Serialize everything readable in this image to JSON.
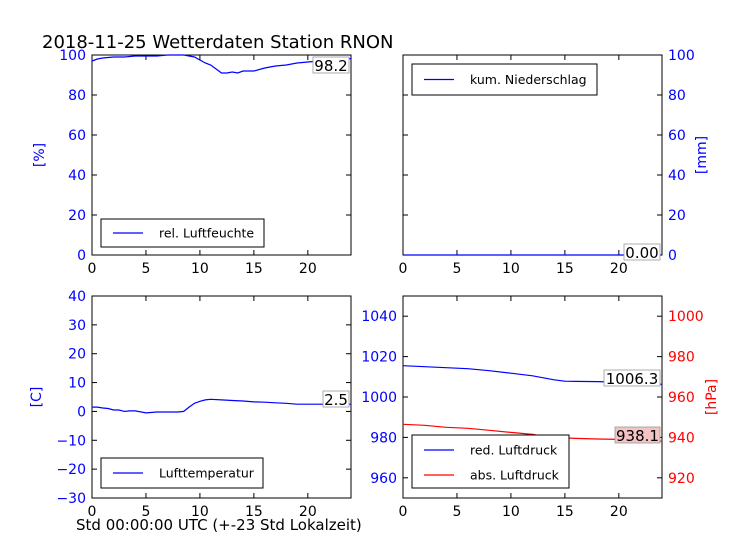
{
  "figure": {
    "title": "2018-11-25 Wetterdaten Station RNON",
    "xlabel": "Std 00:00:00 UTC (+-23 Std Lokalzeit)"
  },
  "chart_data": [
    {
      "id": "humidity",
      "type": "line",
      "ylabel": "[%]",
      "xlim": [
        0,
        24
      ],
      "ylim": [
        0,
        100
      ],
      "xticks": [
        "0",
        "5",
        "10",
        "15",
        "20"
      ],
      "yticks": [
        "0",
        "20",
        "40",
        "60",
        "80",
        "100"
      ],
      "grid": false,
      "legend_placement": "lower-left",
      "last_value_label": "98.2",
      "series": [
        {
          "name": "rel. Luftfeuchte",
          "color": "#0000ff",
          "x": [
            0,
            0.5,
            1,
            2,
            3,
            4,
            5,
            6,
            7,
            8,
            8.5,
            9,
            9.5,
            10,
            10.5,
            11,
            11.5,
            12,
            12.5,
            13,
            13.5,
            14,
            15,
            16,
            17,
            18,
            19,
            20,
            21,
            22,
            23,
            24
          ],
          "y": [
            97,
            98,
            98.5,
            99,
            99,
            99.5,
            99.5,
            99.5,
            100,
            100,
            100,
            99.5,
            99,
            97.5,
            96,
            95,
            93,
            91,
            91,
            91.5,
            91,
            92,
            92,
            93.5,
            94.5,
            95,
            96,
            96.5,
            97,
            97.5,
            98,
            98.2
          ]
        }
      ]
    },
    {
      "id": "precipitation",
      "type": "line",
      "ylabel": "[mm]",
      "xlim": [
        0,
        24
      ],
      "ylim": [
        0,
        100
      ],
      "xticks": [
        "0",
        "5",
        "10",
        "15",
        "20"
      ],
      "yticks": [
        "0",
        "20",
        "40",
        "60",
        "80",
        "100"
      ],
      "grid": false,
      "legend_placement": "upper-left",
      "last_value_label": "0.00",
      "series": [
        {
          "name": "kum. Niederschlag",
          "color": "#0000ff",
          "x": [
            0,
            24
          ],
          "y": [
            0,
            0
          ]
        }
      ]
    },
    {
      "id": "temperature",
      "type": "line",
      "ylabel": "[C]",
      "xlim": [
        0,
        24
      ],
      "ylim": [
        -30,
        40
      ],
      "xticks": [
        "0",
        "5",
        "10",
        "15",
        "20"
      ],
      "yticks": [
        "−30",
        "−20",
        "−10",
        "0",
        "10",
        "20",
        "30",
        "40"
      ],
      "grid": false,
      "legend_placement": "lower-left",
      "last_value_label": "2.5",
      "series": [
        {
          "name": "Lufttemperatur",
          "color": "#0000ff",
          "x": [
            0,
            0.5,
            1,
            1.5,
            2,
            2.5,
            3,
            3.5,
            4,
            5,
            6,
            7,
            8,
            8.5,
            9,
            9.5,
            10,
            10.5,
            11,
            12,
            13,
            14,
            15,
            16,
            17,
            18,
            19,
            20,
            21,
            22,
            23,
            24
          ],
          "y": [
            1.5,
            1.5,
            1.2,
            1.0,
            0.5,
            0.5,
            0,
            0.2,
            0.2,
            -0.5,
            -0.2,
            -0.2,
            -0.2,
            0,
            1.5,
            2.8,
            3.5,
            4.0,
            4.2,
            4.0,
            3.8,
            3.6,
            3.3,
            3.2,
            3.0,
            2.8,
            2.5,
            2.5,
            2.5,
            2.5,
            2.5,
            2.5
          ]
        }
      ]
    },
    {
      "id": "pressure",
      "type": "line",
      "ylabel": "[hPa]",
      "xlim": [
        0,
        24
      ],
      "ylim": [
        950,
        1050
      ],
      "ylim_right": [
        910,
        1010
      ],
      "xticks": [
        "0",
        "5",
        "10",
        "15",
        "20"
      ],
      "yticks": [
        "960",
        "980",
        "1000",
        "1020",
        "1040"
      ],
      "yticks_right": [
        "920",
        "940",
        "960",
        "980",
        "1000"
      ],
      "grid": false,
      "legend_placement": "lower-left",
      "series": [
        {
          "name": "red. Luftdruck",
          "color": "#0000ff",
          "axis": "left",
          "last_value_label": "1006.3",
          "x": [
            0,
            2,
            4,
            6,
            8,
            10,
            12,
            13,
            14,
            15,
            16,
            18,
            20,
            22,
            24
          ],
          "y": [
            1015.5,
            1015,
            1014.5,
            1014,
            1013,
            1011.8,
            1010.5,
            1009.5,
            1008.5,
            1007.8,
            1007.7,
            1007.6,
            1007.4,
            1007.0,
            1006.3
          ]
        },
        {
          "name": "abs. Luftdruck",
          "color": "#ff0000",
          "axis": "right",
          "last_value_label": "938.1",
          "x": [
            0,
            2,
            4,
            6,
            8,
            10,
            12,
            13,
            14,
            16,
            18,
            20,
            22,
            24
          ],
          "y": [
            946.5,
            946,
            945,
            944.5,
            943.5,
            942.5,
            941.5,
            940.5,
            940,
            939.5,
            939.2,
            939,
            938.6,
            938.1
          ]
        }
      ]
    }
  ]
}
